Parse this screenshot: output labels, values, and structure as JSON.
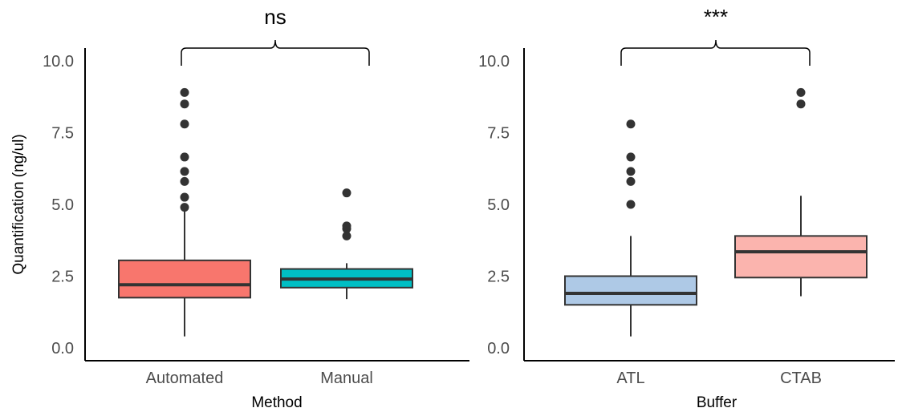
{
  "chart_data": [
    {
      "type": "box",
      "title": "",
      "xlabel": "Method",
      "ylabel": "Quantification (ng/ul)",
      "ylim": [
        0,
        10.5
      ],
      "yticks": [
        "0.0",
        "2.5",
        "5.0",
        "7.5",
        "10.0"
      ],
      "ytick_values": [
        0,
        2.5,
        5.0,
        7.5,
        10.0
      ],
      "grid": false,
      "significance": "ns",
      "categories": [
        "Automated",
        "Manual"
      ],
      "boxes": [
        {
          "category": "Automated",
          "color": "#f8766d",
          "whisker_low": 0.4,
          "q1": 1.75,
          "median": 2.2,
          "q3": 3.05,
          "whisker_high": 4.9,
          "outliers": [
            4.9,
            5.25,
            5.8,
            6.15,
            6.65,
            7.8,
            8.5,
            8.9
          ]
        },
        {
          "category": "Manual",
          "color": "#00bfc4",
          "whisker_low": 1.7,
          "q1": 2.1,
          "median": 2.4,
          "q3": 2.75,
          "whisker_high": 2.95,
          "outliers": [
            3.9,
            4.15,
            4.25,
            5.4
          ]
        }
      ]
    },
    {
      "type": "box",
      "title": "",
      "xlabel": "Buffer",
      "ylabel": "",
      "ylim": [
        0,
        10.5
      ],
      "yticks": [
        "0.0",
        "2.5",
        "5.0",
        "7.5",
        "10.0"
      ],
      "ytick_values": [
        0,
        2.5,
        5.0,
        7.5,
        10.0
      ],
      "grid": false,
      "significance": "***",
      "categories": [
        "ATL",
        "CTAB"
      ],
      "boxes": [
        {
          "category": "ATL",
          "color": "#aec9e6",
          "whisker_low": 0.4,
          "q1": 1.5,
          "median": 1.9,
          "q3": 2.5,
          "whisker_high": 3.9,
          "outliers": [
            5.0,
            5.8,
            6.15,
            6.65,
            7.8
          ]
        },
        {
          "category": "CTAB",
          "color": "#fbb4ae",
          "whisker_low": 1.8,
          "q1": 2.45,
          "median": 3.35,
          "q3": 3.9,
          "whisker_high": 5.3,
          "outliers": [
            8.5,
            8.9
          ]
        }
      ]
    }
  ]
}
